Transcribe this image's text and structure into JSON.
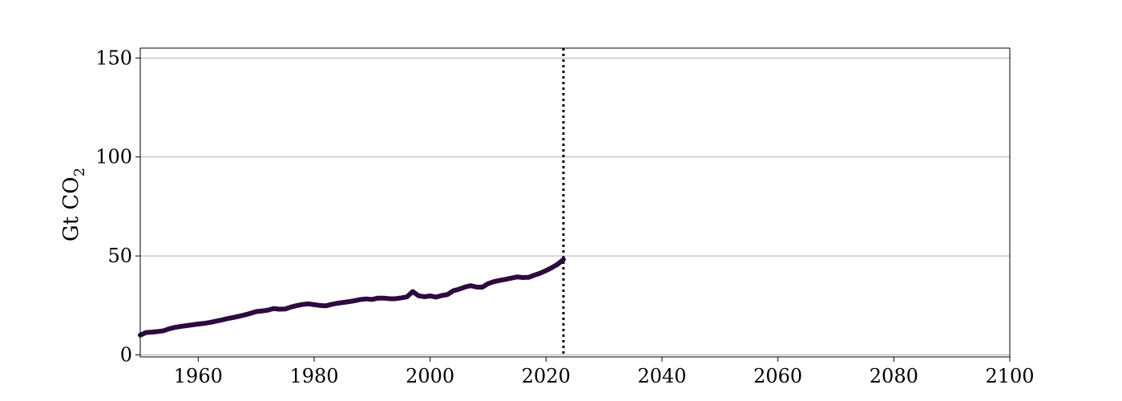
{
  "chart_data": {
    "type": "line",
    "title": "",
    "xlabel": "",
    "ylabel": "Gt CO",
    "ylabel_subscript": "2",
    "xlim": [
      1950,
      2100
    ],
    "ylim": [
      -1,
      155
    ],
    "x_ticks": [
      1960,
      1980,
      2000,
      2020,
      2040,
      2060,
      2080,
      2100
    ],
    "y_ticks": [
      0,
      50,
      100,
      150
    ],
    "grid": "horizontal",
    "legend": "none",
    "vline": {
      "x": 2023,
      "style": "dotted",
      "color": "#000000"
    },
    "series": [
      {
        "color": "#2d0a3f",
        "x": [
          1950,
          1951,
          1952,
          1953,
          1954,
          1955,
          1956,
          1957,
          1958,
          1959,
          1960,
          1961,
          1962,
          1963,
          1964,
          1965,
          1966,
          1967,
          1968,
          1969,
          1970,
          1971,
          1972,
          1973,
          1974,
          1975,
          1976,
          1977,
          1978,
          1979,
          1980,
          1981,
          1982,
          1983,
          1984,
          1985,
          1986,
          1987,
          1988,
          1989,
          1990,
          1991,
          1992,
          1993,
          1994,
          1995,
          1996,
          1997,
          1998,
          1999,
          2000,
          2001,
          2002,
          2003,
          2004,
          2005,
          2006,
          2007,
          2008,
          2009,
          2010,
          2011,
          2012,
          2013,
          2014,
          2015,
          2016,
          2017,
          2018,
          2019,
          2020,
          2021,
          2022,
          2023
        ],
        "y": [
          10,
          11.3,
          11.5,
          11.8,
          12.2,
          13.2,
          13.9,
          14.4,
          14.8,
          15.2,
          15.6,
          15.9,
          16.4,
          17.0,
          17.6,
          18.3,
          18.9,
          19.5,
          20.2,
          21.0,
          21.9,
          22.2,
          22.6,
          23.4,
          23.1,
          23.2,
          24.2,
          24.9,
          25.5,
          25.8,
          25.4,
          25.0,
          24.8,
          25.5,
          26.1,
          26.5,
          26.9,
          27.4,
          28.0,
          28.3,
          28.0,
          28.7,
          28.7,
          28.4,
          28.4,
          28.8,
          29.3,
          32.0,
          29.9,
          29.4,
          29.8,
          29.2,
          30.0,
          30.5,
          32.4,
          33.2,
          34.3,
          35.0,
          34.3,
          34.2,
          36.0,
          37.0,
          37.6,
          38.2,
          38.8,
          39.4,
          39.1,
          39.2,
          40.3,
          41.3,
          42.6,
          44.1,
          45.8,
          48.2
        ]
      }
    ]
  }
}
